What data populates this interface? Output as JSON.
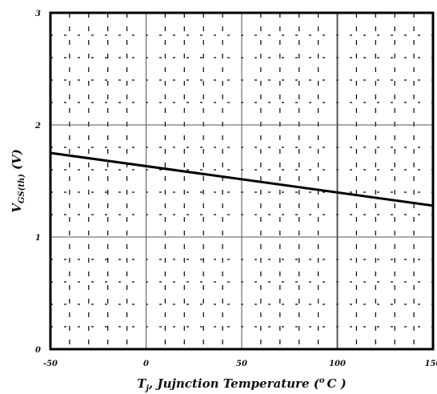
{
  "chart_data": {
    "type": "line",
    "title": "",
    "xlabel": "",
    "ylabel": "",
    "xlabel_parts": {
      "symbol": "T",
      "subscript": "j",
      "text": ", Jujnction Temperature (",
      "superscript": "o",
      "unit": "C )"
    },
    "ylabel_parts": {
      "symbol": "V",
      "subscript": "GS(th)",
      "unit": "(V)"
    },
    "xlim": [
      -50,
      150
    ],
    "ylim": [
      0,
      3
    ],
    "x_ticks": [
      -50,
      0,
      50,
      100,
      150
    ],
    "x_tick_labels": [
      "-50",
      "0",
      "50",
      "100",
      "150"
    ],
    "y_ticks": [
      0,
      1,
      2,
      3
    ],
    "y_tick_labels": [
      "0",
      "1",
      "2",
      "3"
    ],
    "grid": true,
    "series": [
      {
        "x": [
          -50,
          150
        ],
        "y": [
          1.75,
          1.28
        ]
      }
    ]
  }
}
